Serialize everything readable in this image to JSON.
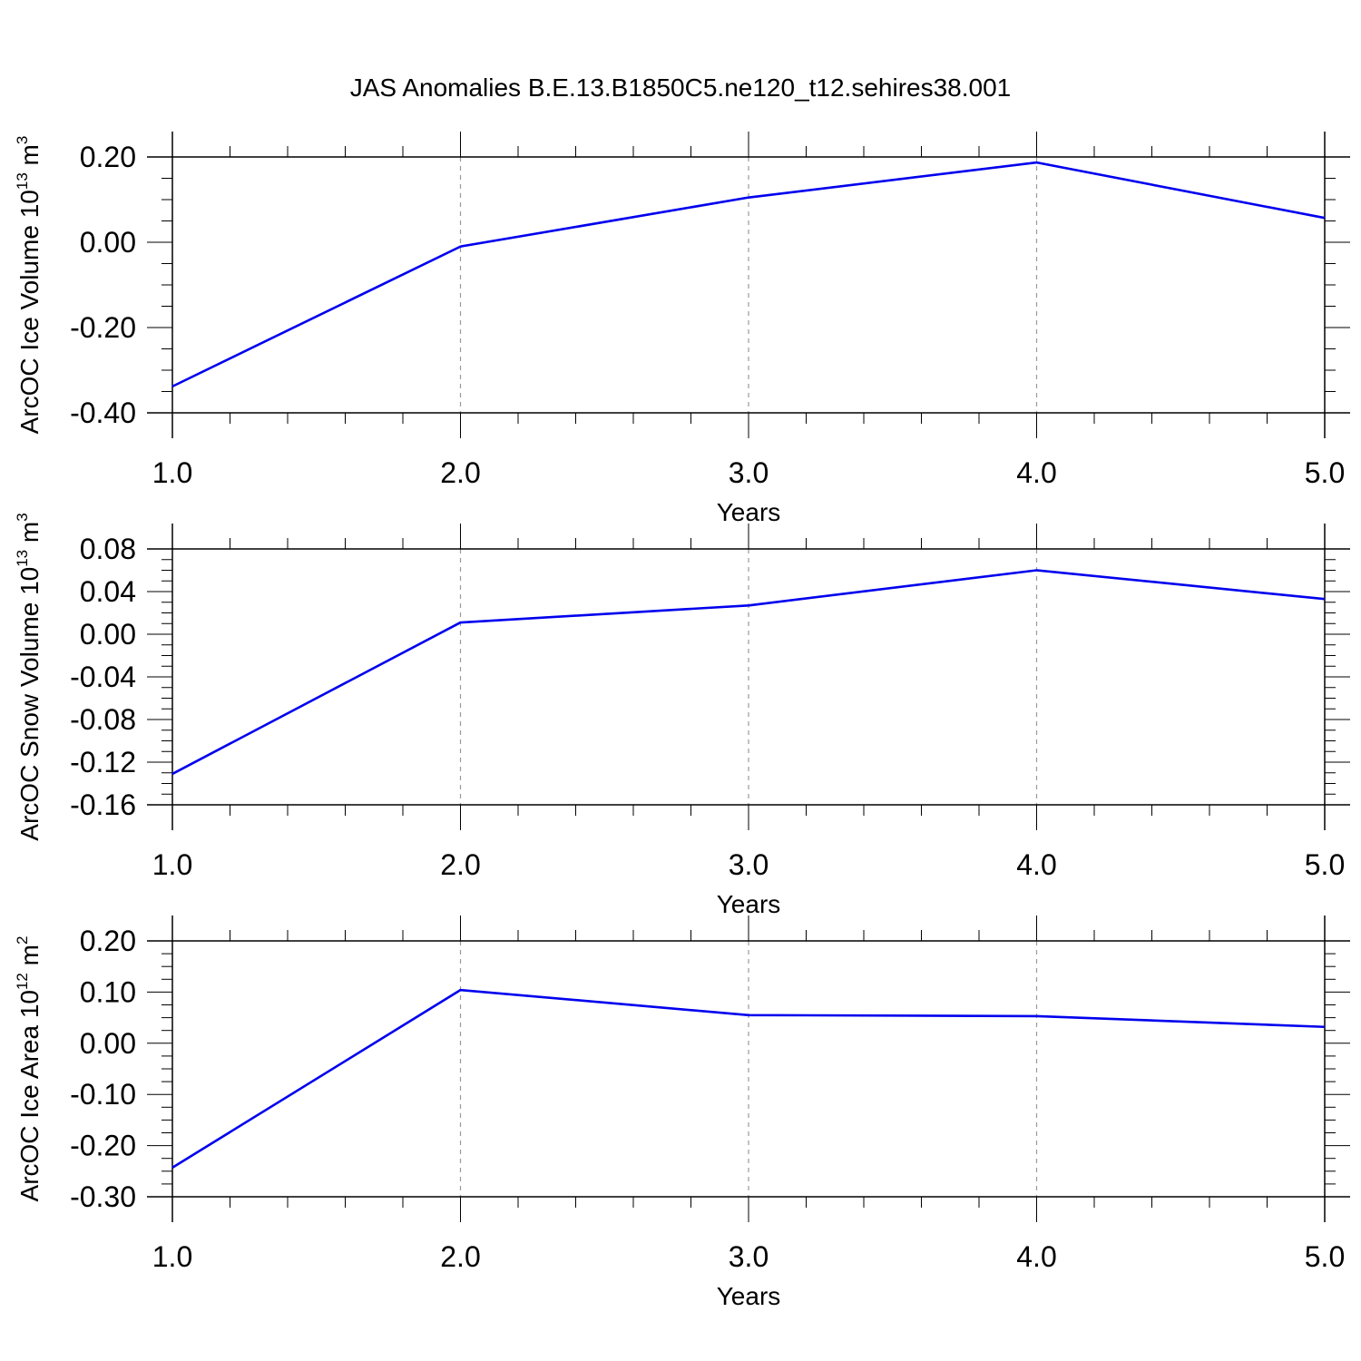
{
  "title": "JAS Anomalies B.E.13.B1850C5.ne120_t12.sehires38.001",
  "colors": {
    "line": "#0000ee",
    "axis": "#000000",
    "grid": "#9a9a9a"
  },
  "chart_data": [
    {
      "type": "line",
      "title": "",
      "xlabel": "Years",
      "ylabel": "ArcOC Ice Volume 10",
      "ylabel_exp": "13",
      "ylabel_unit": "m",
      "ylabel_unit_exp": "3",
      "xlim": [
        1.0,
        5.0
      ],
      "ylim": [
        -0.4,
        0.2
      ],
      "x_ticks": [
        "1.0",
        "2.0",
        "3.0",
        "4.0",
        "5.0"
      ],
      "y_ticks": [
        "0.20",
        "0.00",
        "-0.20",
        "-0.40"
      ],
      "grid": "vertical-dashed",
      "x": [
        1.0,
        2.0,
        3.0,
        4.0,
        5.0
      ],
      "y": [
        -0.338,
        -0.01,
        0.105,
        0.187,
        0.057
      ]
    },
    {
      "type": "line",
      "title": "",
      "xlabel": "Years",
      "ylabel": "ArcOC Snow Volume 10",
      "ylabel_exp": "13",
      "ylabel_unit": "m",
      "ylabel_unit_exp": "3",
      "xlim": [
        1.0,
        5.0
      ],
      "ylim": [
        -0.16,
        0.08
      ],
      "x_ticks": [
        "1.0",
        "2.0",
        "3.0",
        "4.0",
        "5.0"
      ],
      "y_ticks": [
        "0.08",
        "0.04",
        "0.00",
        "-0.04",
        "-0.08",
        "-0.12",
        "-0.16"
      ],
      "grid": "vertical-dashed",
      "x": [
        1.0,
        2.0,
        3.0,
        4.0,
        5.0
      ],
      "y": [
        -0.131,
        0.011,
        0.027,
        0.06,
        0.033
      ]
    },
    {
      "type": "line",
      "title": "",
      "xlabel": "Years",
      "ylabel": "ArcOC Ice Area 10",
      "ylabel_exp": "12",
      "ylabel_unit": "m",
      "ylabel_unit_exp": "2",
      "xlim": [
        1.0,
        5.0
      ],
      "ylim": [
        -0.3,
        0.2
      ],
      "x_ticks": [
        "1.0",
        "2.0",
        "3.0",
        "4.0",
        "5.0"
      ],
      "y_ticks": [
        "0.20",
        "0.10",
        "0.00",
        "-0.10",
        "-0.20",
        "-0.30"
      ],
      "grid": "vertical-dashed",
      "x": [
        1.0,
        2.0,
        3.0,
        4.0,
        5.0
      ],
      "y": [
        -0.243,
        0.104,
        0.055,
        0.053,
        0.032
      ]
    }
  ]
}
